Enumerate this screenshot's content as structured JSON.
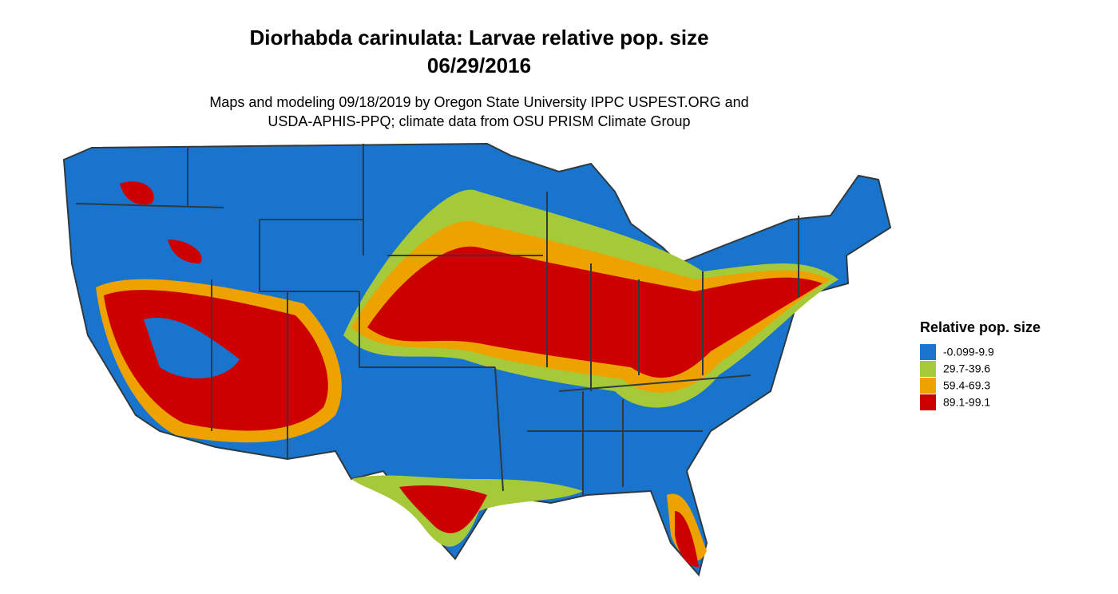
{
  "title": "Diorhabda carinulata: Larvae relative pop. size",
  "date": "06/29/2016",
  "subtitle": [
    "Maps and modeling 09/18/2019 by Oregon State University IPPC USPEST.ORG and",
    "USDA-APHIS-PPQ; climate data from OSU PRISM Climate Group"
  ],
  "legend": {
    "title": "Relative pop. size",
    "items": [
      {
        "label": "-0.099-9.9",
        "color": "#1874cd"
      },
      {
        "label": "29.7-39.6",
        "color": "#a6c93a"
      },
      {
        "label": "59.4-69.3",
        "color": "#eea200"
      },
      {
        "label": "89.1-99.1",
        "color": "#cd0000"
      }
    ]
  }
}
